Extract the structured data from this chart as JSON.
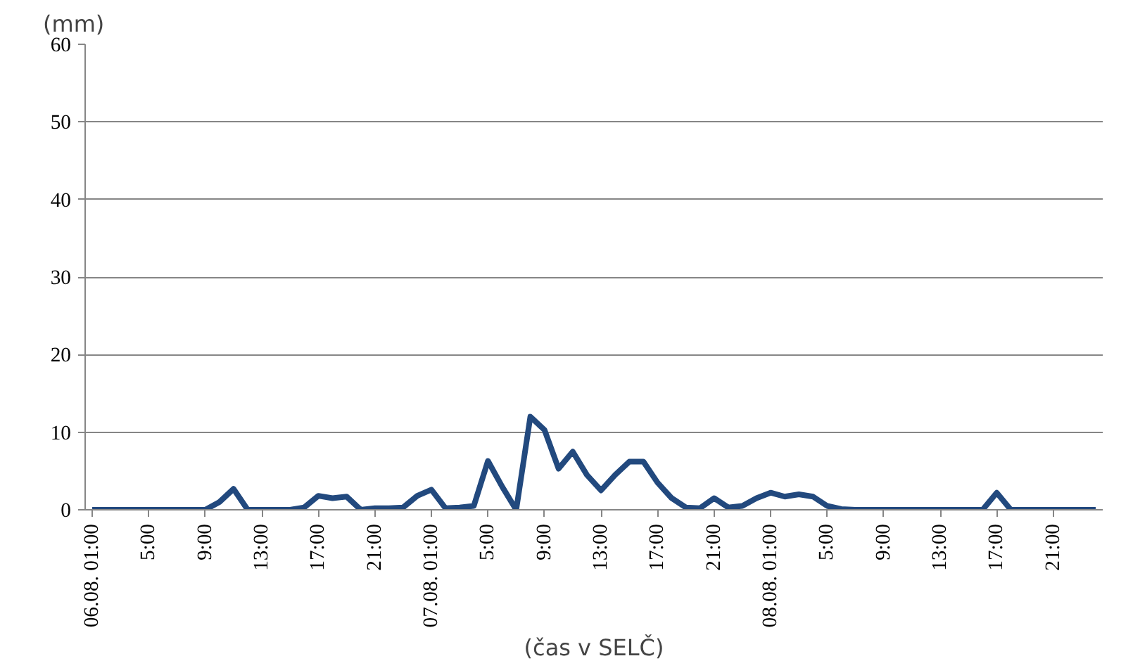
{
  "chart_data": {
    "type": "line",
    "ylabel": "(mm)",
    "xlabel": "(čas v SELČ)",
    "categories": [
      "06.08. 01:00",
      null,
      null,
      null,
      "5:00",
      null,
      null,
      null,
      "9:00",
      null,
      null,
      null,
      "13:00",
      null,
      null,
      null,
      "17:00",
      null,
      null,
      null,
      "21:00",
      null,
      null,
      null,
      "07.08. 01:00",
      null,
      null,
      null,
      "5:00",
      null,
      null,
      null,
      "9:00",
      null,
      null,
      null,
      "13:00",
      null,
      null,
      null,
      "17:00",
      null,
      null,
      null,
      "21:00",
      null,
      null,
      null,
      "08.08. 01:00",
      null,
      null,
      null,
      "5:00",
      null,
      null,
      null,
      "9:00",
      null,
      null,
      null,
      "13:00",
      null,
      null,
      null,
      "17:00",
      null,
      null,
      null,
      "21:00",
      null,
      null,
      null
    ],
    "series": [
      {
        "color": "#22497e",
        "values": [
          0,
          0,
          0,
          0,
          0,
          0,
          0,
          0,
          0,
          1,
          2.7,
          0,
          0,
          0,
          0,
          0.3,
          1.8,
          1.5,
          1.7,
          0,
          0.2,
          0.2,
          0.3,
          1.8,
          2.6,
          0.2,
          0.3,
          0.5,
          6.3,
          3,
          0,
          12,
          10.3,
          5.3,
          7.5,
          4.5,
          2.5,
          4.5,
          6.2,
          6.2,
          3.5,
          1.5,
          0.3,
          0.2,
          1.5,
          0.3,
          0.5,
          1.5,
          2.2,
          1.7,
          2,
          1.7,
          0.5,
          0.1,
          0,
          0,
          0,
          0,
          0,
          0,
          0,
          0,
          0,
          0,
          2.2,
          0,
          0,
          0,
          0,
          0,
          0,
          0
        ]
      }
    ],
    "ylim": [
      0,
      60
    ],
    "yticks": [
      0,
      10,
      20,
      30,
      40,
      50,
      60
    ],
    "grid": "y",
    "line_style": "solid"
  }
}
